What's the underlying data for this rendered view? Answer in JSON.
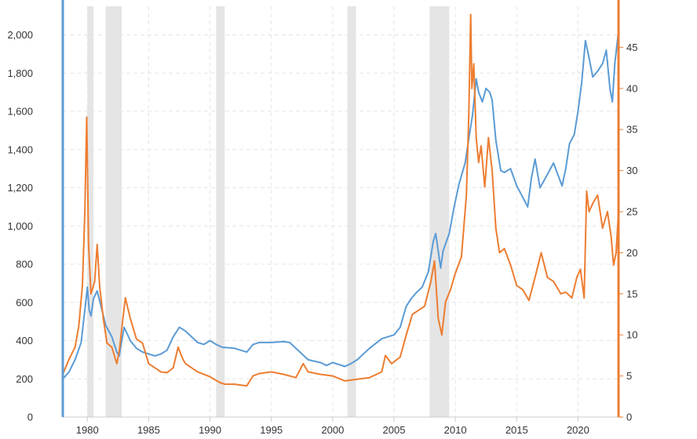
{
  "chart_data": {
    "type": "line",
    "title": "",
    "xlabel": "",
    "ylabel_left": "",
    "ylabel_right": "",
    "x_ticks": [
      "1980",
      "1985",
      "1990",
      "1995",
      "2000",
      "2005",
      "2010",
      "2015",
      "2020"
    ],
    "xlim": [
      1978.0,
      2023.3
    ],
    "ylim_left": [
      0,
      2150
    ],
    "ylim_right": [
      0,
      50
    ],
    "y_ticks_left": [
      "0",
      "200",
      "400",
      "600",
      "800",
      "1,000",
      "1,200",
      "1,400",
      "1,600",
      "1,800",
      "2,000"
    ],
    "y_ticks_right": [
      "0",
      "5",
      "10",
      "15",
      "20",
      "25",
      "30",
      "35",
      "40",
      "45"
    ],
    "grid": true,
    "legend": "none",
    "recessions": [
      [
        1980.0,
        1980.5
      ],
      [
        1981.5,
        1982.8
      ],
      [
        1990.5,
        1991.2
      ],
      [
        2001.2,
        2001.9
      ],
      [
        2007.9,
        2009.5
      ]
    ],
    "series": [
      {
        "axis": "left",
        "color": "#5b9bd5",
        "x": [
          1978.0,
          1978.5,
          1979.0,
          1979.5,
          1979.8,
          1980.0,
          1980.15,
          1980.3,
          1980.5,
          1980.8,
          1981.0,
          1981.5,
          1982.0,
          1982.4,
          1982.6,
          1983.0,
          1983.5,
          1984.0,
          1984.5,
          1985.0,
          1985.5,
          1986.0,
          1986.5,
          1987.0,
          1987.5,
          1988.0,
          1988.5,
          1989.0,
          1989.5,
          1990.0,
          1990.5,
          1991.0,
          1992.0,
          1993.0,
          1993.5,
          1994.0,
          1995.0,
          1996.0,
          1996.5,
          1997.0,
          1997.5,
          1998.0,
          1999.0,
          1999.5,
          2000.0,
          2001.0,
          2001.5,
          2002.0,
          2003.0,
          2004.0,
          2005.0,
          2005.5,
          2006.0,
          2006.4,
          2006.8,
          2007.3,
          2007.8,
          2008.2,
          2008.4,
          2008.8,
          2009.0,
          2009.5,
          2009.9,
          2010.3,
          2010.8,
          2011.2,
          2011.4,
          2011.7,
          2011.9,
          2012.2,
          2012.5,
          2012.8,
          2013.0,
          2013.3,
          2013.7,
          2014.0,
          2014.5,
          2015.0,
          2015.5,
          2015.9,
          2016.2,
          2016.5,
          2016.9,
          2017.5,
          2018.0,
          2018.7,
          2019.0,
          2019.3,
          2019.7,
          2020.0,
          2020.3,
          2020.6,
          2020.9,
          2021.2,
          2021.6,
          2022.0,
          2022.3,
          2022.6,
          2022.8,
          2023.0,
          2023.3
        ],
        "y": [
          200,
          235,
          300,
          390,
          560,
          680,
          560,
          530,
          620,
          660,
          610,
          480,
          420,
          340,
          320,
          470,
          400,
          360,
          340,
          330,
          320,
          330,
          350,
          420,
          470,
          450,
          420,
          390,
          380,
          400,
          380,
          365,
          360,
          340,
          380,
          390,
          390,
          395,
          390,
          360,
          330,
          300,
          285,
          270,
          285,
          265,
          280,
          300,
          360,
          410,
          430,
          470,
          580,
          620,
          650,
          680,
          760,
          920,
          960,
          780,
          870,
          960,
          1100,
          1220,
          1330,
          1500,
          1580,
          1770,
          1700,
          1650,
          1720,
          1700,
          1660,
          1450,
          1290,
          1280,
          1300,
          1210,
          1150,
          1100,
          1250,
          1350,
          1200,
          1270,
          1330,
          1210,
          1300,
          1430,
          1480,
          1600,
          1750,
          1970,
          1880,
          1780,
          1810,
          1850,
          1920,
          1720,
          1650,
          1850,
          2020
        ]
      },
      {
        "axis": "right",
        "color": "#ed7d31",
        "x": [
          1978.0,
          1978.5,
          1979.0,
          1979.3,
          1979.6,
          1979.8,
          1979.95,
          1980.1,
          1980.3,
          1980.6,
          1980.8,
          1981.0,
          1981.3,
          1981.6,
          1982.0,
          1982.4,
          1982.6,
          1982.9,
          1983.1,
          1983.5,
          1984.0,
          1984.5,
          1985.0,
          1985.5,
          1986.0,
          1986.5,
          1987.0,
          1987.4,
          1987.8,
          1988.0,
          1989.0,
          1990.0,
          1990.8,
          1991.2,
          1992.0,
          1993.0,
          1993.5,
          1994.0,
          1995.0,
          1996.0,
          1997.0,
          1997.6,
          1998.0,
          1999.0,
          2000.0,
          2001.0,
          2002.0,
          2003.0,
          2004.0,
          2004.3,
          2004.8,
          2005.5,
          2006.0,
          2006.5,
          2007.0,
          2007.5,
          2008.0,
          2008.3,
          2008.6,
          2008.9,
          2009.2,
          2009.6,
          2010.0,
          2010.5,
          2010.9,
          2011.1,
          2011.25,
          2011.35,
          2011.5,
          2011.7,
          2011.9,
          2012.1,
          2012.4,
          2012.7,
          2013.0,
          2013.3,
          2013.6,
          2014.0,
          2014.5,
          2015.0,
          2015.5,
          2016.0,
          2016.5,
          2017.0,
          2017.5,
          2018.0,
          2018.6,
          2019.0,
          2019.5,
          2019.9,
          2020.2,
          2020.5,
          2020.7,
          2020.9,
          2021.2,
          2021.6,
          2022.0,
          2022.4,
          2022.7,
          2022.9,
          2023.1,
          2023.3
        ],
        "y": [
          5.2,
          7.0,
          8.5,
          11.0,
          16.0,
          25.0,
          36.5,
          21.0,
          15.0,
          16.5,
          21.0,
          16.0,
          12.0,
          9.0,
          8.5,
          6.5,
          8.0,
          12.0,
          14.5,
          12.0,
          9.5,
          9.0,
          6.5,
          6.0,
          5.5,
          5.4,
          6.0,
          8.5,
          7.0,
          6.5,
          5.5,
          4.9,
          4.2,
          4.0,
          4.0,
          3.8,
          5.0,
          5.3,
          5.5,
          5.2,
          4.8,
          6.5,
          5.5,
          5.2,
          5.0,
          4.4,
          4.6,
          4.8,
          5.5,
          7.5,
          6.5,
          7.3,
          10.0,
          12.5,
          13.0,
          13.5,
          16.5,
          19.0,
          12.0,
          10.0,
          14.0,
          15.5,
          17.5,
          19.5,
          27.0,
          37.0,
          49.0,
          40.0,
          43.0,
          34.0,
          31.0,
          33.0,
          28.0,
          34.0,
          30.0,
          23.0,
          20.0,
          20.5,
          18.5,
          16.0,
          15.5,
          14.2,
          17.0,
          20.0,
          17.0,
          16.5,
          15.0,
          15.2,
          14.5,
          17.0,
          18.0,
          14.5,
          27.5,
          25.0,
          26.0,
          27.0,
          23.0,
          25.0,
          22.0,
          18.5,
          20.0,
          25.0
        ]
      }
    ]
  }
}
